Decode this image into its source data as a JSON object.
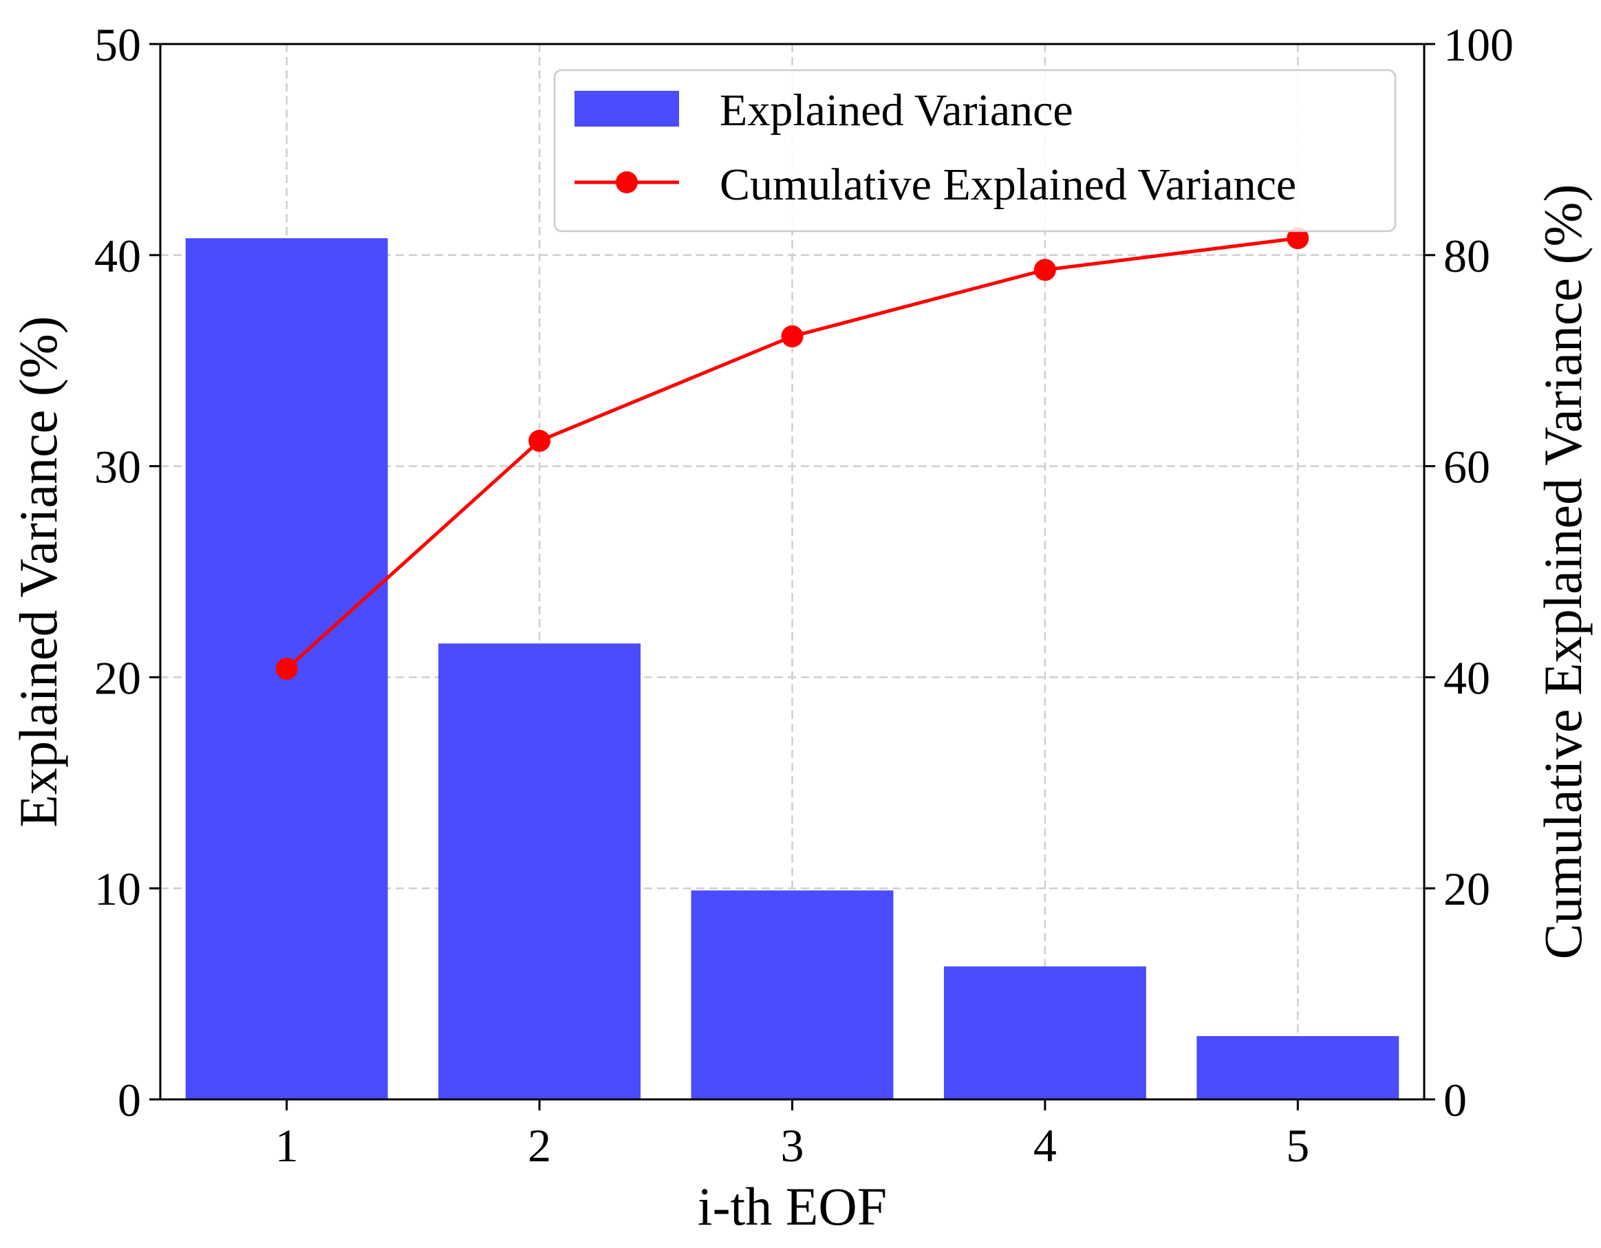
{
  "chart_data": {
    "type": "bar",
    "x": [
      1,
      2,
      3,
      4,
      5
    ],
    "xlabel": "i-th EOF",
    "ylabel": "Explained Variance (%)",
    "y2label": "Cumulative Explained Variance (%)",
    "ylim": [
      0,
      50
    ],
    "y2lim": [
      0,
      100
    ],
    "yticks": [
      0,
      10,
      20,
      30,
      40,
      50
    ],
    "y2ticks": [
      0,
      20,
      40,
      60,
      80,
      100
    ],
    "xticks": [
      1,
      2,
      3,
      4,
      5
    ],
    "grid": true,
    "legend_position": "upper-right",
    "series": [
      {
        "name": "Explained Variance",
        "type": "bar",
        "axis": "left",
        "color": "#4b4bff",
        "values": [
          40.8,
          21.6,
          9.9,
          6.3,
          3.0
        ]
      },
      {
        "name": "Cumulative Explained Variance",
        "type": "line",
        "axis": "right",
        "marker": "circle",
        "color": "#ff0000",
        "values": [
          40.8,
          62.4,
          72.3,
          78.6,
          81.6
        ]
      }
    ]
  }
}
